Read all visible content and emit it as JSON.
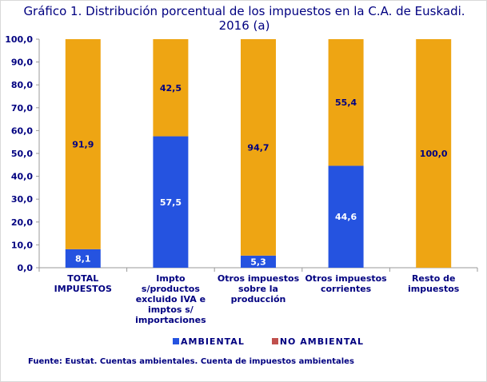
{
  "chart_data": {
    "type": "bar",
    "stacked": true,
    "title": "Gráfico 1. Distribución porcentual de los impuestos en la C.A. de Euskadi. 2016 (a)",
    "title_lines": [
      "Gráfico 1. Distribución porcentual de los impuestos en la C.A. de Euskadi.",
      "2016 (a)"
    ],
    "categories": [
      [
        "TOTAL",
        "IMPUESTOS"
      ],
      [
        "Impto",
        "s/productos",
        "excluido IVA e",
        "imptos s/",
        "importaciones"
      ],
      [
        "Otros impuestos",
        "sobre la",
        "producción"
      ],
      [
        "Otros impuestos",
        "corrientes"
      ],
      [
        "Resto de",
        "impuestos"
      ]
    ],
    "series": [
      {
        "name": "AMBIENTAL",
        "values": [
          8.1,
          57.5,
          5.3,
          44.6,
          0
        ],
        "labels": [
          "8,1",
          "57,5",
          "5,3",
          "44,6",
          ""
        ],
        "color": "#2553e0",
        "legend_color": "#2553e0",
        "label_color": "#ffffff"
      },
      {
        "name": "NO AMBIENTAL",
        "values": [
          91.9,
          42.5,
          94.7,
          55.4,
          100
        ],
        "labels": [
          "91,9",
          "42,5",
          "94,7",
          "55,4",
          "100,0"
        ],
        "color": "#eea513",
        "legend_color": "#c0504d",
        "label_color": "#000080"
      }
    ],
    "ylim": [
      0,
      100
    ],
    "yticks": [
      "0,0",
      "10,0",
      "20,0",
      "30,0",
      "40,0",
      "50,0",
      "60,0",
      "70,0",
      "80,0",
      "90,0",
      "100,0"
    ],
    "grid": false,
    "legend_position": "bottom"
  },
  "source": "Fuente: Eustat. Cuentas ambientales. Cuenta de impuestos ambientales"
}
